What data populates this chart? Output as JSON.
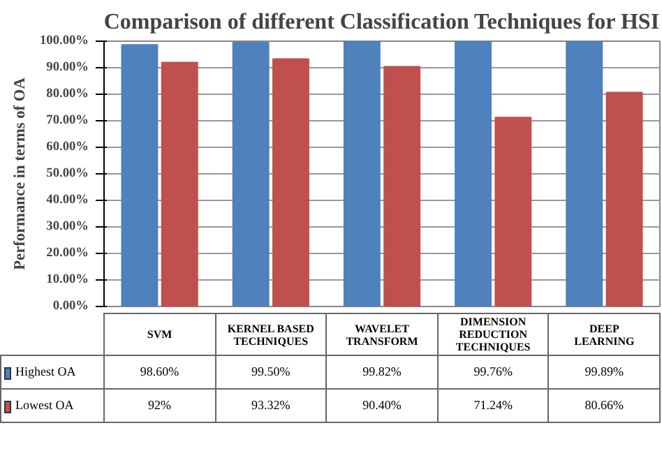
{
  "chart_data": {
    "type": "bar",
    "title": "Comparison of different Classification Techniques for HSI",
    "ylabel": "Performance in terms of OA",
    "categories": [
      "SVM",
      "KERNEL BASED TECHNIQUES",
      "WAVELET TRANSFORM",
      "DIMENSION REDUCTION TECHNIQUES",
      "DEEP LEARNING"
    ],
    "series": [
      {
        "name": "Highest OA",
        "color": "#4f81bd",
        "values": [
          98.6,
          99.5,
          99.82,
          99.76,
          99.89
        ],
        "value_labels": [
          "98.60%",
          "99.50%",
          "99.82%",
          "99.76%",
          "99.89%"
        ]
      },
      {
        "name": "Lowest OA",
        "color": "#c0504d",
        "values": [
          92,
          93.32,
          90.4,
          71.24,
          80.66
        ],
        "value_labels": [
          "92%",
          "93.32%",
          "90.40%",
          "71.24%",
          "80.66%"
        ]
      }
    ],
    "ylim": [
      0,
      100
    ],
    "yticks": [
      {
        "value": 0,
        "label": "0.00%"
      },
      {
        "value": 10,
        "label": "10.00%"
      },
      {
        "value": 20,
        "label": "20.00%"
      },
      {
        "value": 30,
        "label": "30.00%"
      },
      {
        "value": 40,
        "label": "40.00%"
      },
      {
        "value": 50,
        "label": "50.00%"
      },
      {
        "value": 60,
        "label": "60.00%"
      },
      {
        "value": 70,
        "label": "70.00%"
      },
      {
        "value": 80,
        "label": "80.00%"
      },
      {
        "value": 90,
        "label": "90.00%"
      },
      {
        "value": 100,
        "label": "100.00%"
      }
    ],
    "grid": "y",
    "legend": "bottom"
  }
}
